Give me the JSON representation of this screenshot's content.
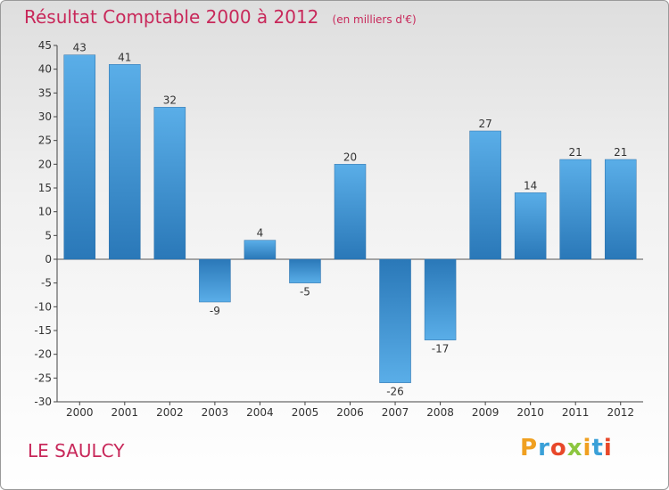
{
  "header": {
    "title": "Résultat Comptable 2000 à 2012",
    "unit": "(en milliers d'€)"
  },
  "footer": {
    "town": "LE SAULCY",
    "logo": "Proxiti"
  },
  "colors": {
    "bar_light": "#5aaee8",
    "bar_dark": "#2a78b8",
    "title": "#c8285a"
  },
  "chart_data": {
    "type": "bar",
    "title": "Résultat Comptable 2000 à 2012",
    "subtitle": "(en milliers d'€)",
    "xlabel": "",
    "ylabel": "",
    "categories": [
      "2000",
      "2001",
      "2002",
      "2003",
      "2004",
      "2005",
      "2006",
      "2007",
      "2008",
      "2009",
      "2010",
      "2011",
      "2012"
    ],
    "values": [
      43,
      41,
      32,
      -9,
      4,
      -5,
      20,
      -26,
      -17,
      27,
      14,
      21,
      21
    ],
    "ylim": [
      -30,
      45
    ],
    "yticks": [
      45,
      40,
      35,
      30,
      25,
      20,
      15,
      10,
      5,
      0,
      -5,
      -10,
      -15,
      -20,
      -25,
      -30
    ],
    "grid": false,
    "legend": "none"
  }
}
